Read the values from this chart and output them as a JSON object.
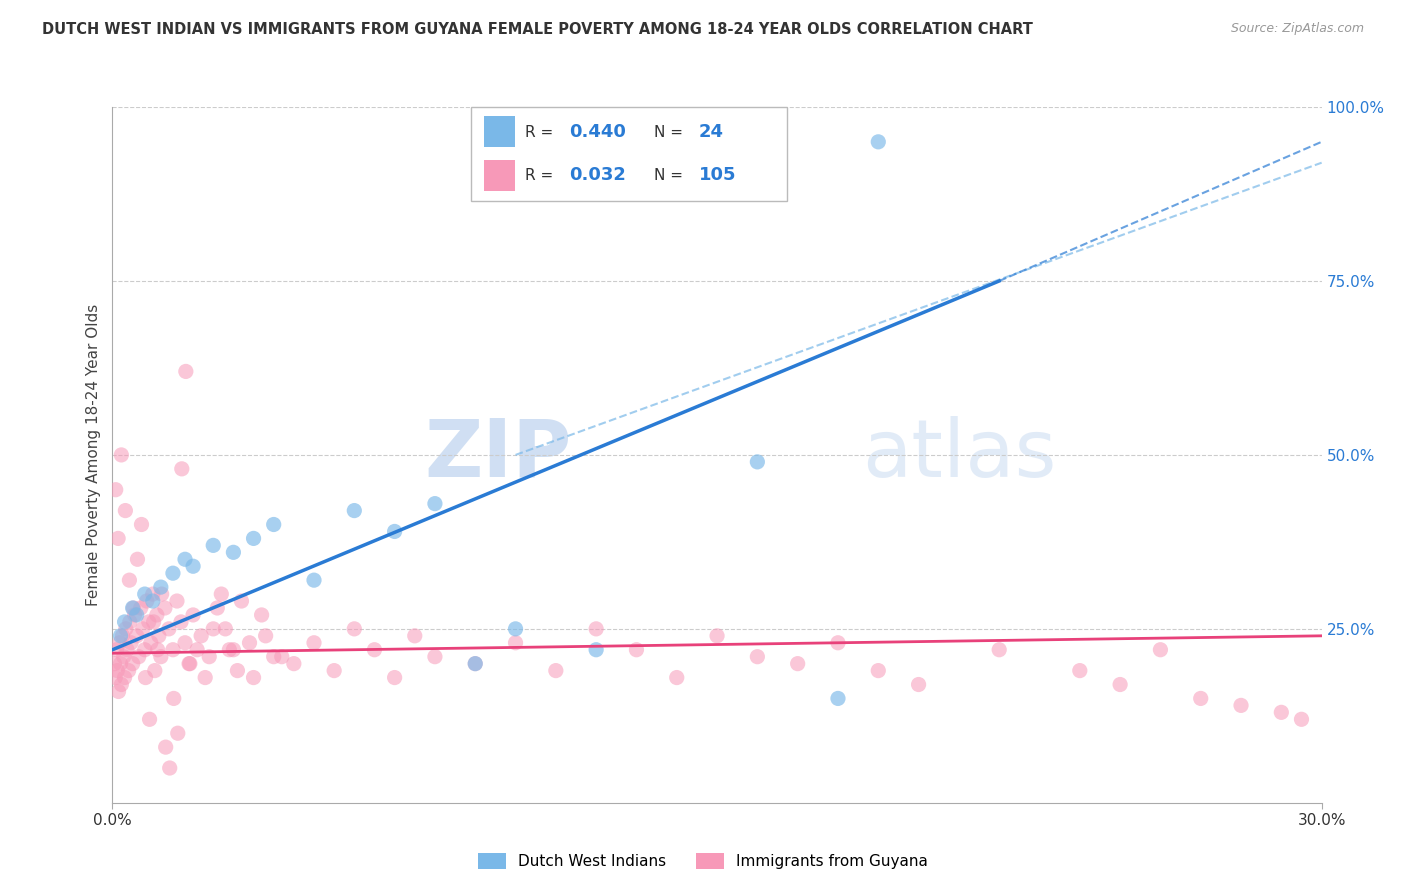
{
  "title": "DUTCH WEST INDIAN VS IMMIGRANTS FROM GUYANA FEMALE POVERTY AMONG 18-24 YEAR OLDS CORRELATION CHART",
  "source": "Source: ZipAtlas.com",
  "ylabel": "Female Poverty Among 18-24 Year Olds",
  "x_min": 0.0,
  "x_max": 30.0,
  "y_min": 0.0,
  "y_max": 100.0,
  "blue_R": 0.44,
  "blue_N": 24,
  "pink_R": 0.032,
  "pink_N": 105,
  "legend_label_blue": "Dutch West Indians",
  "legend_label_pink": "Immigrants from Guyana",
  "blue_color": "#7ab8e8",
  "pink_color": "#f799b8",
  "blue_line_color": "#2a7bd4",
  "pink_line_color": "#e8417a",
  "ref_line_color": "#7ab8e8",
  "watermark_zip": "ZIP",
  "watermark_atlas": "atlas",
  "blue_line_x0": 0.0,
  "blue_line_y0": 22.0,
  "blue_line_x1": 22.0,
  "blue_line_y1": 75.0,
  "blue_dash_x0": 22.0,
  "blue_dash_y0": 75.0,
  "blue_dash_x1": 30.0,
  "blue_dash_y1": 95.0,
  "pink_line_y0": 21.5,
  "pink_line_y1": 24.0,
  "ref_line_x0": 10.0,
  "ref_line_y0": 50.0,
  "ref_line_x1": 30.0,
  "ref_line_y1": 92.0,
  "blue_pts_x": [
    0.2,
    0.3,
    0.5,
    0.6,
    0.8,
    1.0,
    1.2,
    1.5,
    1.8,
    2.0,
    2.5,
    3.0,
    3.5,
    4.0,
    5.0,
    6.0,
    7.0,
    8.0,
    9.0,
    10.0,
    12.0,
    16.0,
    18.0,
    19.0
  ],
  "blue_pts_y": [
    24.0,
    26.0,
    28.0,
    27.0,
    30.0,
    29.0,
    31.0,
    33.0,
    35.0,
    34.0,
    37.0,
    36.0,
    38.0,
    40.0,
    32.0,
    42.0,
    39.0,
    43.0,
    20.0,
    25.0,
    22.0,
    49.0,
    15.0,
    95.0
  ],
  "pink_pts_x": [
    0.05,
    0.07,
    0.1,
    0.12,
    0.15,
    0.18,
    0.2,
    0.22,
    0.25,
    0.28,
    0.3,
    0.33,
    0.36,
    0.4,
    0.43,
    0.46,
    0.5,
    0.55,
    0.6,
    0.65,
    0.7,
    0.75,
    0.8,
    0.85,
    0.9,
    0.95,
    1.0,
    1.05,
    1.1,
    1.15,
    1.2,
    1.3,
    1.4,
    1.5,
    1.6,
    1.7,
    1.8,
    1.9,
    2.0,
    2.2,
    2.4,
    2.6,
    2.8,
    3.0,
    3.2,
    3.5,
    3.8,
    4.0,
    4.5,
    5.0,
    5.5,
    6.0,
    6.5,
    7.0,
    7.5,
    8.0,
    9.0,
    10.0,
    11.0,
    12.0,
    13.0,
    14.0,
    15.0,
    16.0,
    17.0,
    18.0,
    19.0,
    20.0,
    22.0,
    24.0,
    25.0,
    26.0,
    27.0,
    28.0,
    29.0,
    29.5,
    0.08,
    0.14,
    0.22,
    0.32,
    0.42,
    0.52,
    0.62,
    0.72,
    0.82,
    0.92,
    1.02,
    1.12,
    1.22,
    1.32,
    1.42,
    1.52,
    1.62,
    1.72,
    1.82,
    1.92,
    2.1,
    2.3,
    2.5,
    2.7,
    2.9,
    3.1,
    3.4,
    3.7,
    4.2
  ],
  "pink_pts_y": [
    20.0,
    18.0,
    22.0,
    19.0,
    16.0,
    23.0,
    20.0,
    17.0,
    24.0,
    21.0,
    18.0,
    25.0,
    22.0,
    19.0,
    26.0,
    23.0,
    20.0,
    27.0,
    24.0,
    21.0,
    28.0,
    25.0,
    22.0,
    29.0,
    26.0,
    23.0,
    30.0,
    19.0,
    27.0,
    24.0,
    21.0,
    28.0,
    25.0,
    22.0,
    29.0,
    26.0,
    23.0,
    20.0,
    27.0,
    24.0,
    21.0,
    28.0,
    25.0,
    22.0,
    29.0,
    18.0,
    24.0,
    21.0,
    20.0,
    23.0,
    19.0,
    25.0,
    22.0,
    18.0,
    24.0,
    21.0,
    20.0,
    23.0,
    19.0,
    25.0,
    22.0,
    18.0,
    24.0,
    21.0,
    20.0,
    23.0,
    19.0,
    17.0,
    22.0,
    19.0,
    17.0,
    22.0,
    15.0,
    14.0,
    13.0,
    12.0,
    45.0,
    38.0,
    50.0,
    42.0,
    32.0,
    28.0,
    35.0,
    40.0,
    18.0,
    12.0,
    26.0,
    22.0,
    30.0,
    8.0,
    5.0,
    15.0,
    10.0,
    48.0,
    62.0,
    20.0,
    22.0,
    18.0,
    25.0,
    30.0,
    22.0,
    19.0,
    23.0,
    27.0,
    21.0
  ]
}
